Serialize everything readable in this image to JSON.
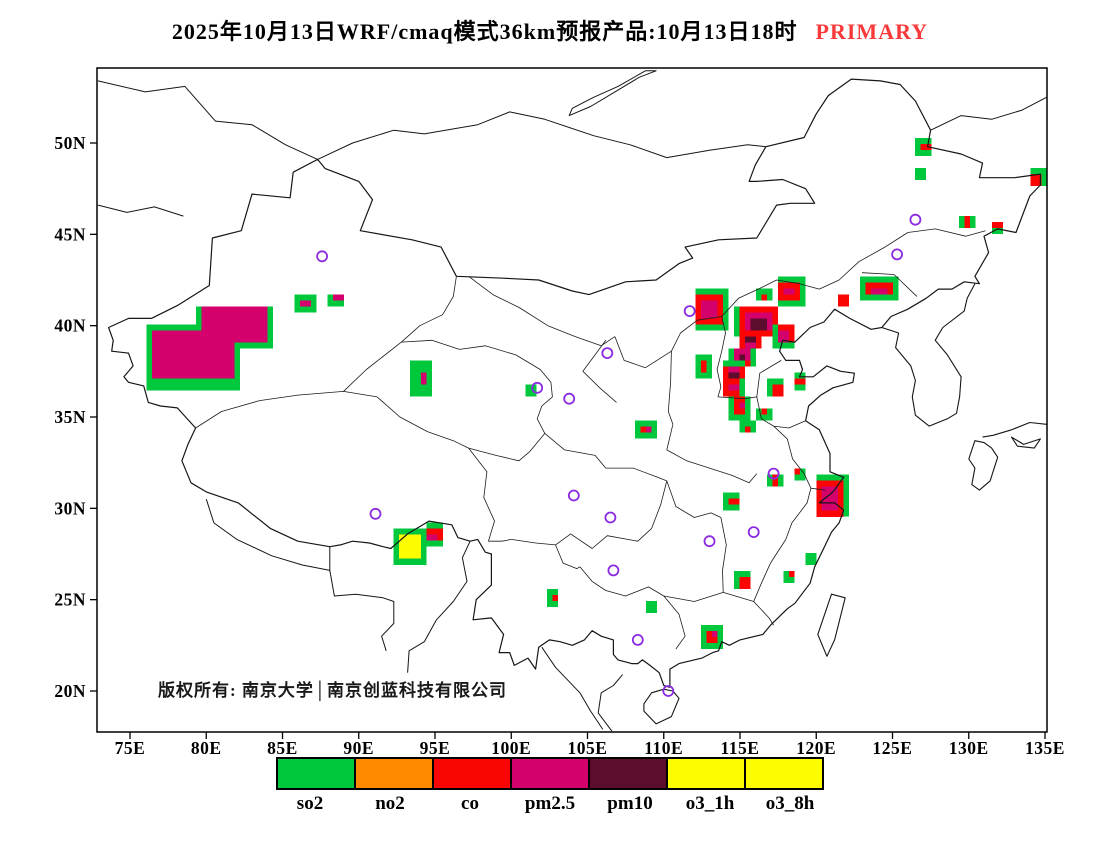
{
  "title": {
    "text": "2025年10月13日WRF/cmaq模式36km预报产品:10月13日18时",
    "tag": "PRIMARY",
    "tag_color": "#fa3a3a"
  },
  "map": {
    "copyright": "版权所有: 南京大学│南京创蓝科技有限公司",
    "lon_ticks": [
      {
        "label": "75E",
        "lon": 75
      },
      {
        "label": "80E",
        "lon": 80
      },
      {
        "label": "85E",
        "lon": 85
      },
      {
        "label": "90E",
        "lon": 90
      },
      {
        "label": "95E",
        "lon": 95
      },
      {
        "label": "100E",
        "lon": 100
      },
      {
        "label": "105E",
        "lon": 105
      },
      {
        "label": "110E",
        "lon": 110
      },
      {
        "label": "115E",
        "lon": 115
      },
      {
        "label": "120E",
        "lon": 120
      },
      {
        "label": "125E",
        "lon": 125
      },
      {
        "label": "130E",
        "lon": 130
      },
      {
        "label": "135E",
        "lon": 135
      }
    ],
    "lat_ticks": [
      {
        "label": "50N",
        "lat": 50
      },
      {
        "label": "45N",
        "lat": 45
      },
      {
        "label": "40N",
        "lat": 40
      },
      {
        "label": "35N",
        "lat": 35
      },
      {
        "label": "30N",
        "lat": 30
      },
      {
        "label": "25N",
        "lat": 25
      },
      {
        "label": "20N",
        "lat": 20
      }
    ],
    "patches": [
      [
        "so2",
        75.9,
        36.6,
        82.1,
        40.0
      ],
      [
        "so2",
        79.4,
        38.7,
        84.4,
        41.2
      ],
      [
        "pm25",
        76.3,
        37.0,
        81.7,
        39.6
      ],
      [
        "pm25",
        79.8,
        39.1,
        84.0,
        40.9
      ],
      [
        "so2",
        85.9,
        40.8,
        87.4,
        41.8
      ],
      [
        "pm25",
        86.25,
        41.1,
        87.05,
        41.5
      ],
      [
        "so2",
        87.9,
        41.0,
        89.2,
        41.8
      ],
      [
        "pm25",
        88.25,
        41.25,
        88.9,
        41.55
      ],
      [
        "so2",
        93.5,
        36.2,
        94.9,
        38.0
      ],
      [
        "pm25",
        93.9,
        36.9,
        94.5,
        37.5
      ],
      [
        "so2",
        92.2,
        26.8,
        94.6,
        29.0
      ],
      [
        "so2",
        94.3,
        27.9,
        95.6,
        29.1
      ],
      [
        "co",
        94.4,
        28.1,
        95.4,
        28.9
      ],
      [
        "pm25",
        94.6,
        28.3,
        95.1,
        28.7
      ],
      [
        "o3",
        92.55,
        27.1,
        94.25,
        28.65
      ],
      [
        "so2",
        108.2,
        33.9,
        109.6,
        34.8
      ],
      [
        "co",
        108.5,
        34.1,
        109.3,
        34.6
      ],
      [
        "pm25",
        108.75,
        34.25,
        109.1,
        34.5
      ],
      [
        "so2",
        100.9,
        36.1,
        101.6,
        36.8
      ],
      [
        "so2",
        111.9,
        39.8,
        114.2,
        41.9
      ],
      [
        "co",
        112.25,
        40.1,
        113.9,
        41.6
      ],
      [
        "pm25",
        112.6,
        40.4,
        113.55,
        41.25
      ],
      [
        "so2",
        114.7,
        39.3,
        117.6,
        41.2
      ],
      [
        "co",
        115.0,
        39.5,
        117.3,
        40.95
      ],
      [
        "pm25",
        115.35,
        39.7,
        117.0,
        40.7
      ],
      [
        "pm10",
        115.65,
        39.9,
        116.6,
        40.5
      ],
      [
        "so2",
        114.9,
        38.6,
        116.5,
        39.75
      ],
      [
        "co",
        115.05,
        38.75,
        116.3,
        39.6
      ],
      [
        "pm25",
        115.2,
        38.9,
        116.1,
        39.45
      ],
      [
        "pm10",
        115.4,
        39.05,
        115.9,
        39.35
      ],
      [
        "so2",
        114.4,
        37.7,
        115.9,
        38.9
      ],
      [
        "co",
        114.6,
        37.85,
        115.75,
        38.75
      ],
      [
        "pm25",
        114.75,
        38.0,
        115.55,
        38.6
      ],
      [
        "pm10",
        114.9,
        38.1,
        115.4,
        38.5
      ],
      [
        "so2",
        113.9,
        36.8,
        115.4,
        38.0
      ],
      [
        "co",
        114.05,
        36.95,
        115.25,
        37.85
      ],
      [
        "pm25",
        114.2,
        37.1,
        115.1,
        37.7
      ],
      [
        "pm10",
        114.4,
        37.25,
        114.9,
        37.6
      ],
      [
        "so2",
        113.7,
        36.0,
        115.2,
        37.1
      ],
      [
        "co",
        113.9,
        36.15,
        115.05,
        36.95
      ],
      [
        "pm25",
        114.1,
        36.3,
        114.9,
        36.8
      ],
      [
        "so2",
        114.3,
        34.9,
        115.7,
        36.25
      ],
      [
        "co",
        114.55,
        35.1,
        115.45,
        36.0
      ],
      [
        "pm25",
        114.8,
        35.3,
        115.25,
        35.8
      ],
      [
        "so2",
        115.0,
        34.0,
        115.9,
        34.75
      ],
      [
        "co",
        115.2,
        34.2,
        115.7,
        34.55
      ],
      [
        "so2",
        117.0,
        38.8,
        118.7,
        40.2
      ],
      [
        "co",
        117.3,
        39.0,
        118.45,
        40.0
      ],
      [
        "pm25",
        117.5,
        39.2,
        118.25,
        39.8
      ],
      [
        "so2",
        117.3,
        41.2,
        119.3,
        42.6
      ],
      [
        "co",
        117.6,
        41.45,
        119.0,
        42.3
      ],
      [
        "pm25",
        117.9,
        41.65,
        118.65,
        42.1
      ],
      [
        "so2",
        116.1,
        41.3,
        117.0,
        42.0
      ],
      [
        "co",
        116.3,
        41.5,
        116.8,
        41.85
      ],
      [
        "so2",
        112.1,
        37.2,
        113.1,
        38.35
      ],
      [
        "co",
        112.35,
        37.45,
        112.85,
        38.1
      ],
      [
        "so2",
        116.7,
        36.0,
        118.0,
        37.0
      ],
      [
        "co",
        116.95,
        36.2,
        117.75,
        36.8
      ],
      [
        "so2",
        118.4,
        36.5,
        119.4,
        37.3
      ],
      [
        "co",
        118.65,
        36.7,
        119.15,
        37.1
      ],
      [
        "so2",
        116.1,
        34.9,
        117.1,
        35.6
      ],
      [
        "co",
        116.35,
        35.05,
        116.85,
        35.45
      ],
      [
        "so2",
        122.8,
        41.3,
        125.4,
        42.7
      ],
      [
        "co",
        123.15,
        41.55,
        125.05,
        42.45
      ],
      [
        "pm25",
        123.5,
        41.75,
        124.65,
        42.2
      ],
      [
        "so2",
        121.3,
        41.0,
        122.2,
        41.8
      ],
      [
        "co",
        121.55,
        41.2,
        122.0,
        41.6
      ],
      [
        "so2",
        126.6,
        49.4,
        127.7,
        50.3
      ],
      [
        "co",
        126.85,
        49.6,
        127.45,
        50.1
      ],
      [
        "so2",
        126.4,
        47.9,
        127.1,
        48.6
      ],
      [
        "so2",
        129.3,
        45.2,
        130.5,
        46.1
      ],
      [
        "co",
        129.55,
        45.45,
        130.2,
        45.9
      ],
      [
        "so2",
        131.5,
        45.0,
        132.4,
        45.7
      ],
      [
        "co",
        131.7,
        45.2,
        132.15,
        45.5
      ],
      [
        "so2",
        133.9,
        47.6,
        135.1,
        48.5
      ],
      [
        "co",
        134.1,
        47.8,
        134.9,
        48.3
      ],
      [
        "so2",
        119.9,
        29.4,
        122.0,
        31.8
      ],
      [
        "co",
        120.15,
        29.7,
        121.7,
        31.5
      ],
      [
        "pm25",
        120.4,
        30.0,
        121.4,
        31.25
      ],
      [
        "so2",
        118.4,
        31.55,
        119.2,
        32.25
      ],
      [
        "co",
        118.6,
        31.75,
        119.0,
        32.05
      ],
      [
        "so2",
        113.9,
        29.9,
        115.1,
        30.9
      ],
      [
        "co",
        114.15,
        30.1,
        114.8,
        30.65
      ],
      [
        "so2",
        116.9,
        31.1,
        117.8,
        31.9
      ],
      [
        "co",
        117.1,
        31.3,
        117.6,
        31.7
      ],
      [
        "so2",
        114.7,
        25.5,
        115.8,
        26.6
      ],
      [
        "co",
        114.95,
        25.75,
        115.5,
        26.3
      ],
      [
        "so2",
        112.4,
        22.4,
        113.9,
        23.5
      ],
      [
        "co",
        112.7,
        22.65,
        113.6,
        23.25
      ],
      [
        "pm25",
        113.0,
        22.85,
        113.35,
        23.1
      ],
      [
        "so2",
        117.8,
        25.9,
        118.6,
        26.6
      ],
      [
        "co",
        118.05,
        26.1,
        118.4,
        26.4
      ],
      [
        "so2",
        119.3,
        27.0,
        120.0,
        27.65
      ],
      [
        "so2",
        102.4,
        24.7,
        103.2,
        25.5
      ],
      [
        "co",
        102.65,
        24.9,
        103.0,
        25.25
      ],
      [
        "so2",
        108.7,
        24.3,
        109.5,
        25.0
      ]
    ],
    "circles": [
      [
        87.6,
        43.8
      ],
      [
        126.5,
        45.8
      ],
      [
        125.3,
        43.9
      ],
      [
        111.7,
        40.8
      ],
      [
        106.3,
        38.5
      ],
      [
        101.7,
        36.6
      ],
      [
        103.8,
        36.0
      ],
      [
        91.1,
        29.7
      ],
      [
        104.1,
        30.7
      ],
      [
        106.5,
        29.5
      ],
      [
        117.2,
        31.9
      ],
      [
        115.9,
        28.7
      ],
      [
        113.0,
        28.2
      ],
      [
        106.7,
        26.6
      ],
      [
        108.3,
        22.8
      ],
      [
        110.3,
        20.0
      ]
    ]
  },
  "legend": {
    "items": [
      {
        "label": "so2",
        "key": "so2"
      },
      {
        "label": "no2",
        "key": "no2"
      },
      {
        "label": "co",
        "key": "co"
      },
      {
        "label": "pm2.5",
        "key": "pm25"
      },
      {
        "label": "pm10",
        "key": "pm10"
      },
      {
        "label": "o3_1h",
        "key": "o3"
      },
      {
        "label": "o3_8h",
        "key": "o3"
      }
    ]
  },
  "palette": {
    "so2": "#00c83c",
    "no2": "#ff8a00",
    "co": "#fb0404",
    "pm25": "#d4006b",
    "pm10": "#5c0c2c",
    "o3": "#fdfd00",
    "circle": "#8a2be2"
  }
}
